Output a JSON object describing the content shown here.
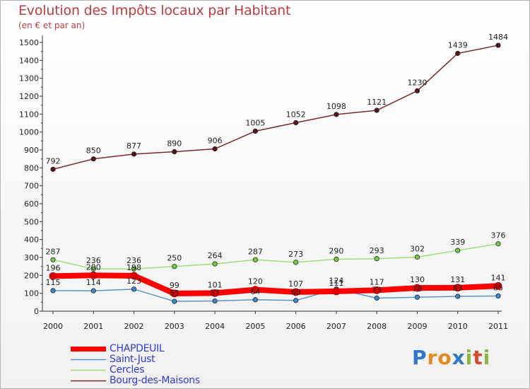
{
  "header": {
    "title": "Evolution des Impôts locaux par Habitant",
    "subtitle": "(en € et par an)"
  },
  "logo": {
    "text": "Proxiti",
    "colors": [
      "#2f77c8",
      "#e58a1f",
      "#e58a1f",
      "#2f77c8",
      "#8ab83a",
      "#d94a2b",
      "#8ab83a"
    ]
  },
  "chart_data": {
    "type": "line",
    "x": [
      "2000",
      "2001",
      "2002",
      "2003",
      "2004",
      "2005",
      "2006",
      "2007",
      "2008",
      "2009",
      "2010",
      "2011"
    ],
    "ylim": [
      0,
      1500
    ],
    "yticks": [
      0,
      100,
      200,
      300,
      400,
      500,
      600,
      700,
      800,
      900,
      1000,
      1100,
      1200,
      1300,
      1400,
      1500
    ],
    "grid": false,
    "legend_position": "bottom-left",
    "series": [
      {
        "name": "Bourg-des-Maisons",
        "color": "#7a2a2a",
        "marker": "#5a1418",
        "values": [
          792,
          850,
          877,
          890,
          906,
          1005,
          1052,
          1098,
          1121,
          1230,
          1439,
          1484
        ],
        "labels": [
          "792",
          "850",
          "877",
          "890",
          "906",
          "1005",
          "1052",
          "1098",
          "1121",
          "1230",
          "1439",
          "1484"
        ]
      },
      {
        "name": "Cercles",
        "color": "#9de07a",
        "marker": "#74cc3e",
        "values": [
          287,
          236,
          236,
          250,
          264,
          287,
          273,
          290,
          293,
          302,
          339,
          376
        ],
        "labels": [
          "287",
          "236",
          "236",
          "250",
          "264",
          "287",
          "273",
          "290",
          "293",
          "302",
          "339",
          "376"
        ]
      },
      {
        "name": "Saint-Just",
        "color": "#5b93c7",
        "marker": "#3d88cc",
        "values": [
          115,
          114,
          123,
          55,
          57,
          64,
          60,
          124,
          73,
          78,
          83,
          85
        ],
        "labels": [
          "115",
          "114",
          "123",
          "55",
          "57",
          "64",
          "60",
          "124",
          "73",
          "78",
          "83",
          "85"
        ]
      },
      {
        "name": "CHAPDEUIL",
        "color": "#ff0000",
        "marker": "#dd0000",
        "values": [
          196,
          200,
          198,
          99,
          101,
          120,
          107,
          111,
          117,
          130,
          131,
          141
        ],
        "labels": [
          "196",
          "200",
          "198",
          "99",
          "101",
          "120",
          "107",
          "111",
          "117",
          "130",
          "131",
          "141"
        ]
      }
    ],
    "legend": [
      "CHAPDEUIL",
      "Saint-Just",
      "Cercles",
      "Bourg-des-Maisons"
    ]
  }
}
